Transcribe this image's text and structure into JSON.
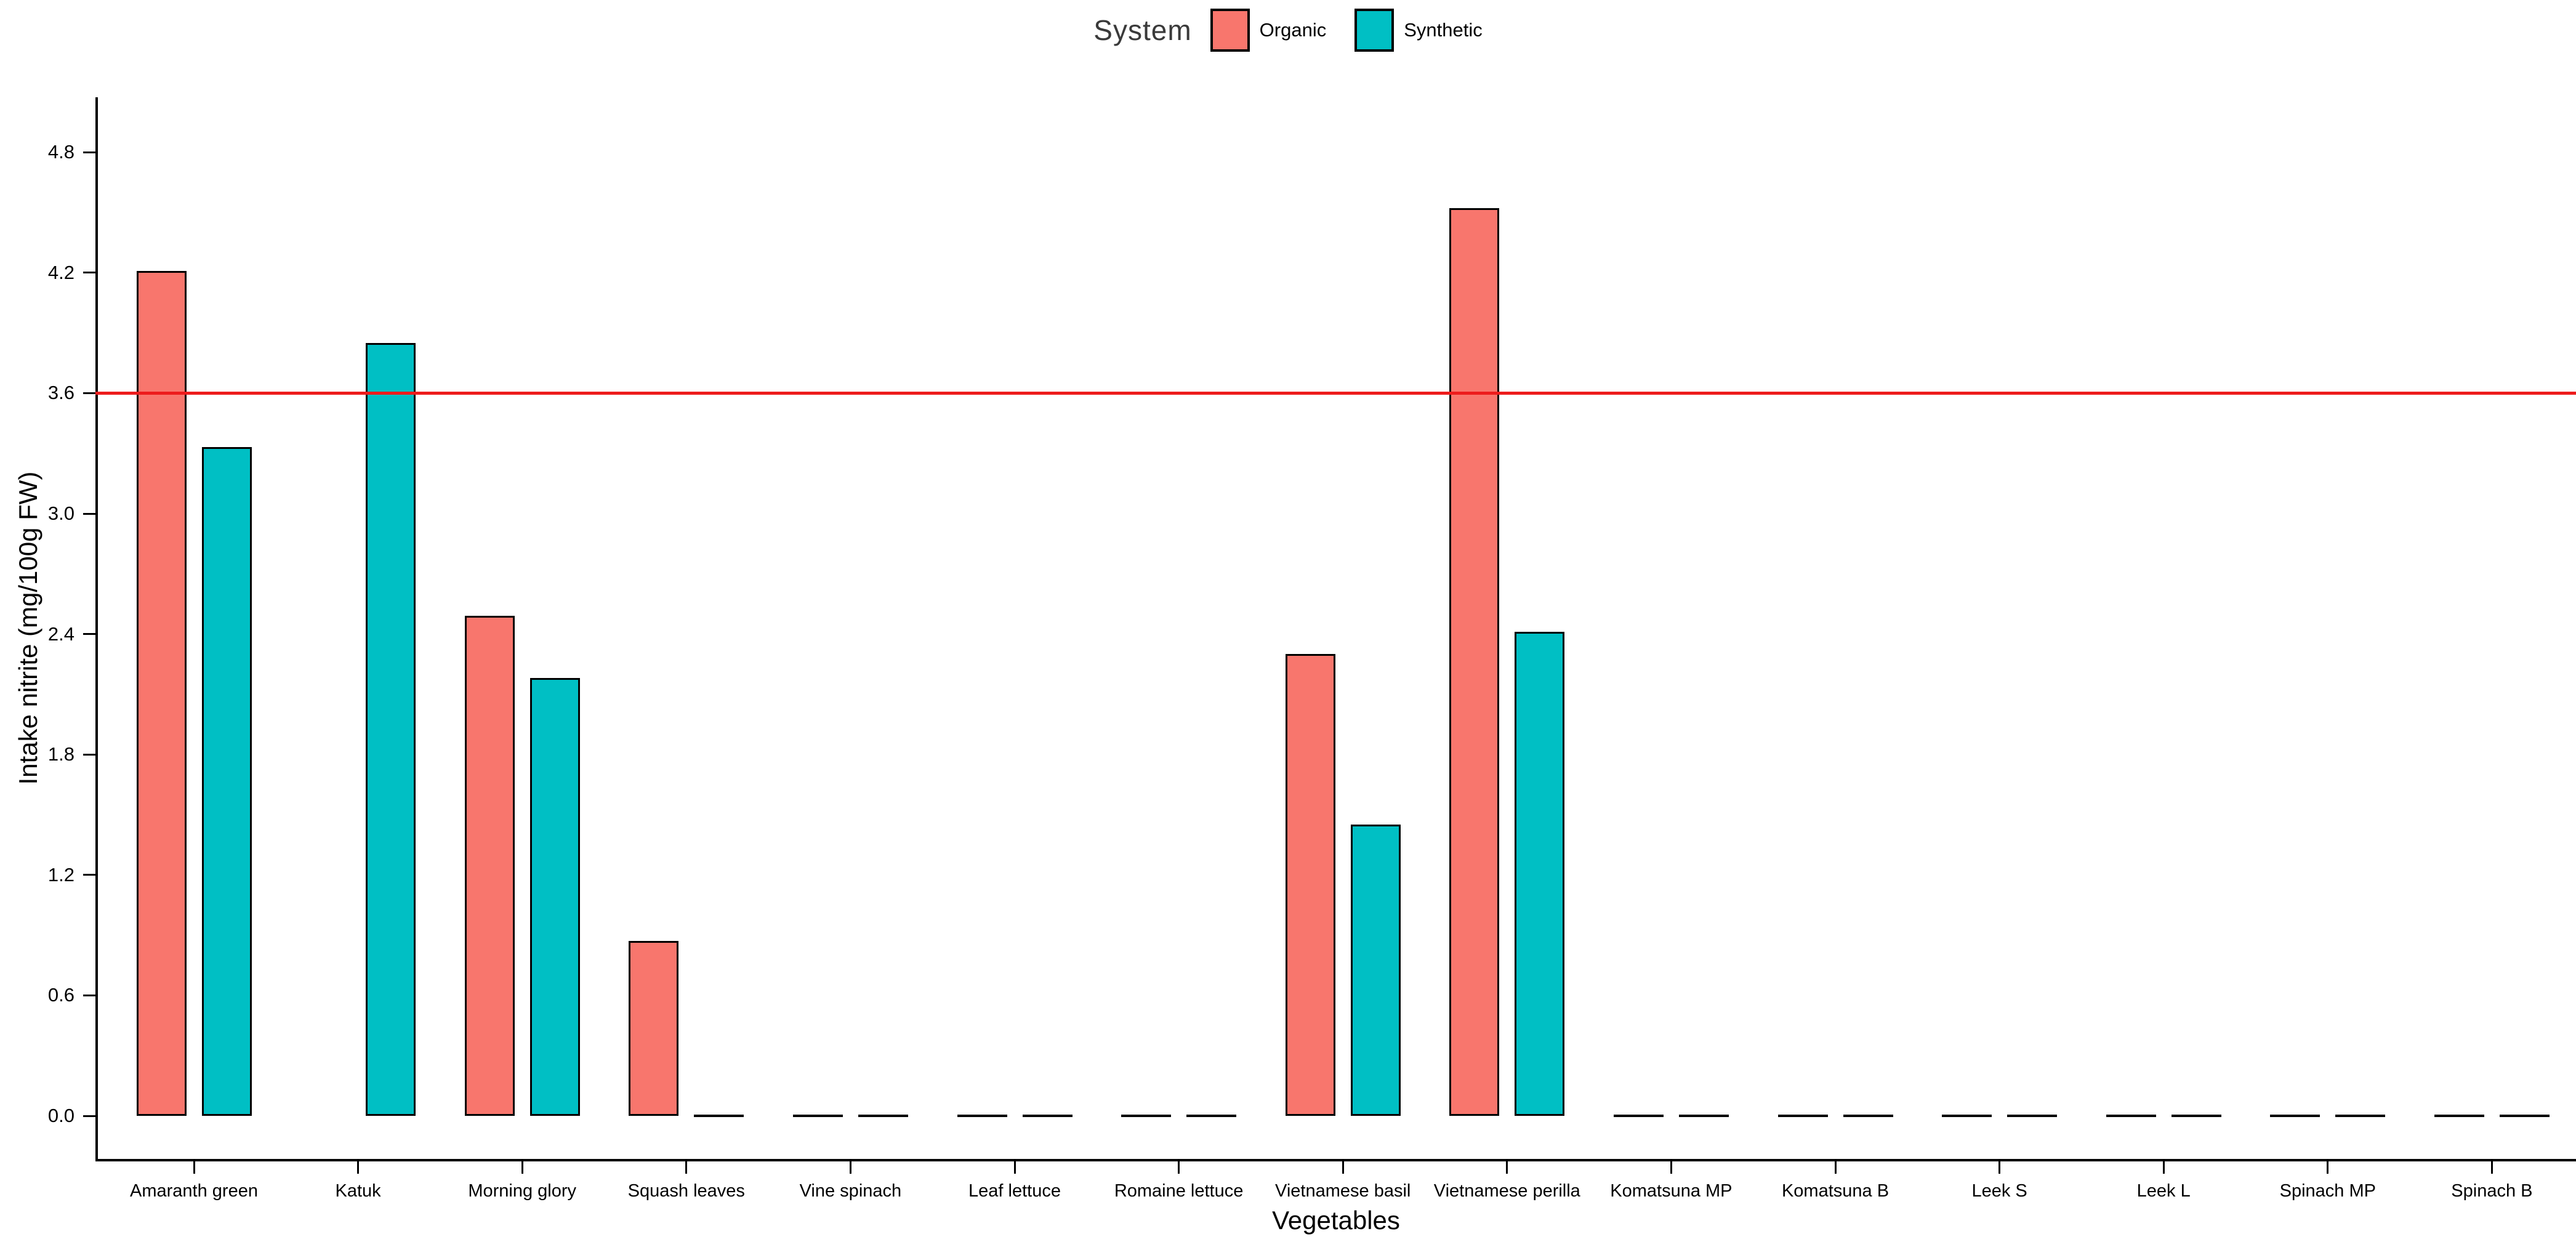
{
  "legend": {
    "title": "System"
  },
  "axes": {
    "y_label": "Intake nitrite (mg/100g FW)",
    "x_label": "Vegetables"
  },
  "chart_data": {
    "type": "bar",
    "grouping": "dodged",
    "title": "",
    "xlabel": "Vegetables",
    "ylabel": "Intake nitrite (mg/100g FW)",
    "categories": [
      "Amaranth green",
      "Katuk",
      "Morning glory",
      "Squash leaves",
      "Vine spinach",
      "Leaf lettuce",
      "Romaine lettuce",
      "Vietnamese basil",
      "Vietnamese perilla",
      "Komatsuna MP",
      "Komatsuna B",
      "Leek S",
      "Leek L",
      "Spinach MP",
      "Spinach B"
    ],
    "series": [
      {
        "name": "Organic",
        "color": "#F8766D",
        "values": [
          4.21,
          null,
          2.49,
          0.87,
          0,
          0,
          0,
          2.3,
          4.52,
          0,
          0,
          0,
          0,
          0,
          0
        ]
      },
      {
        "name": "Synthetic",
        "color": "#00BFC4",
        "values": [
          3.33,
          3.85,
          2.18,
          0,
          0,
          0,
          0,
          1.45,
          2.41,
          0,
          0,
          0,
          0,
          0,
          0
        ]
      }
    ],
    "yticks": [
      "0.0",
      "0.6",
      "1.2",
      "1.8",
      "2.4",
      "3.0",
      "3.6",
      "4.2",
      "4.8"
    ],
    "ylim": [
      0,
      5.05
    ],
    "grid": false,
    "legend_position": "top-center",
    "reference_line": {
      "orientation": "horizontal",
      "value": 3.6,
      "color": "#ed1c1c"
    },
    "bar_outline_color": "#000000"
  }
}
